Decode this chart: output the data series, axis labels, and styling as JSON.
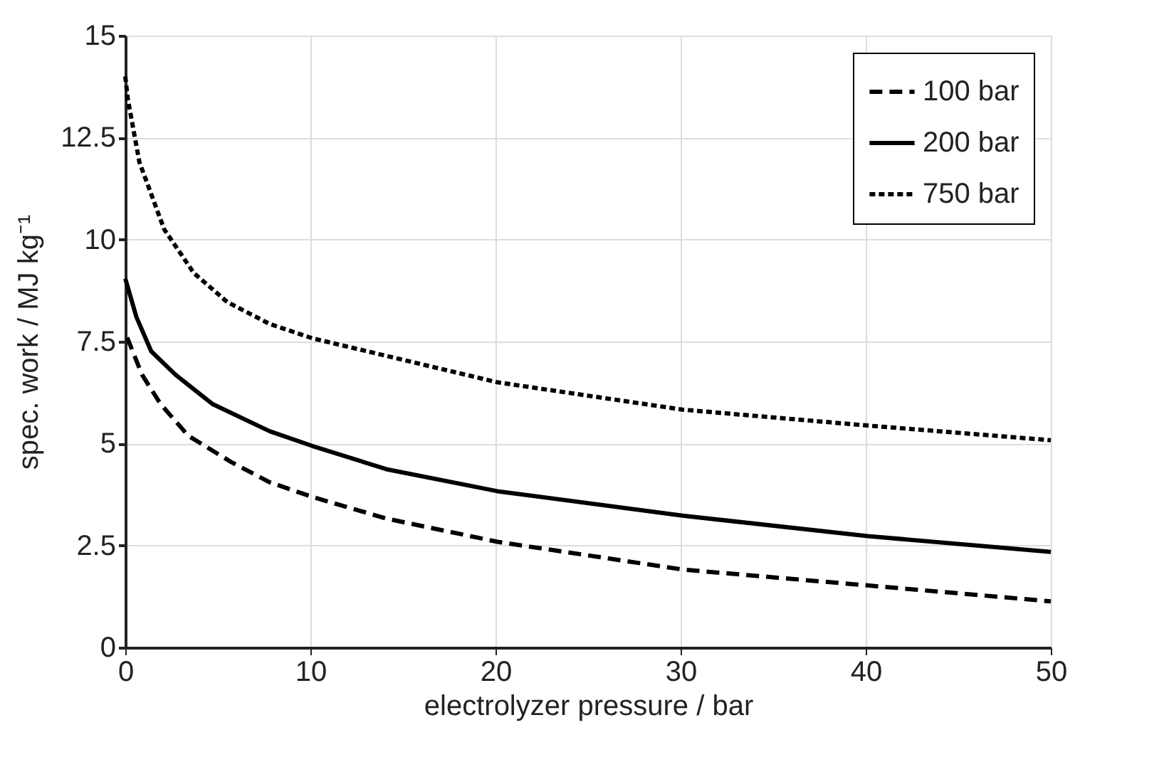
{
  "chart_data": {
    "type": "line",
    "xlabel": "electrolyzer pressure / bar",
    "ylabel": "spec. work / MJ kg⁻¹",
    "xlim": [
      0,
      50
    ],
    "xticks": [
      0,
      10,
      20,
      30,
      40,
      50
    ],
    "ylim": [
      0,
      15
    ],
    "yticks": [
      0,
      2.5,
      5,
      7.5,
      10,
      12.5,
      15
    ],
    "grid": true,
    "legend": "top right",
    "marker": "none",
    "series": [
      {
        "name": "100 bar",
        "color": "#000000",
        "line_style": "dashed",
        "x": [
          0.1,
          0.9,
          1.9,
          3.4,
          5.7,
          7.8,
          10.1,
          14.1,
          20.1,
          30.1,
          40.1,
          50
        ],
        "values": [
          7.6,
          6.69,
          5.97,
          5.19,
          4.55,
          4.05,
          3.69,
          3.16,
          2.59,
          1.91,
          1.52,
          1.13
        ]
      },
      {
        "name": "200 bar",
        "color": "#000000",
        "line_style": "solid",
        "x": [
          0,
          0.6,
          1.4,
          2.7,
          4.7,
          7.8,
          10.1,
          14.1,
          20.1,
          30.1,
          40.1,
          50
        ],
        "values": [
          9.04,
          8.1,
          7.26,
          6.69,
          5.97,
          5.3,
          4.94,
          4.37,
          3.83,
          3.23,
          2.73,
          2.34
        ]
      },
      {
        "name": "750 bar",
        "color": "#000000",
        "line_style": "dotted",
        "x": [
          0,
          0.13,
          0.76,
          2.1,
          3.7,
          5.5,
          7.8,
          10.1,
          20.1,
          30.1,
          40.1,
          50
        ],
        "values": [
          14.0,
          13.46,
          11.9,
          10.25,
          9.18,
          8.47,
          7.93,
          7.58,
          6.5,
          5.83,
          5.44,
          5.08
        ]
      }
    ]
  }
}
